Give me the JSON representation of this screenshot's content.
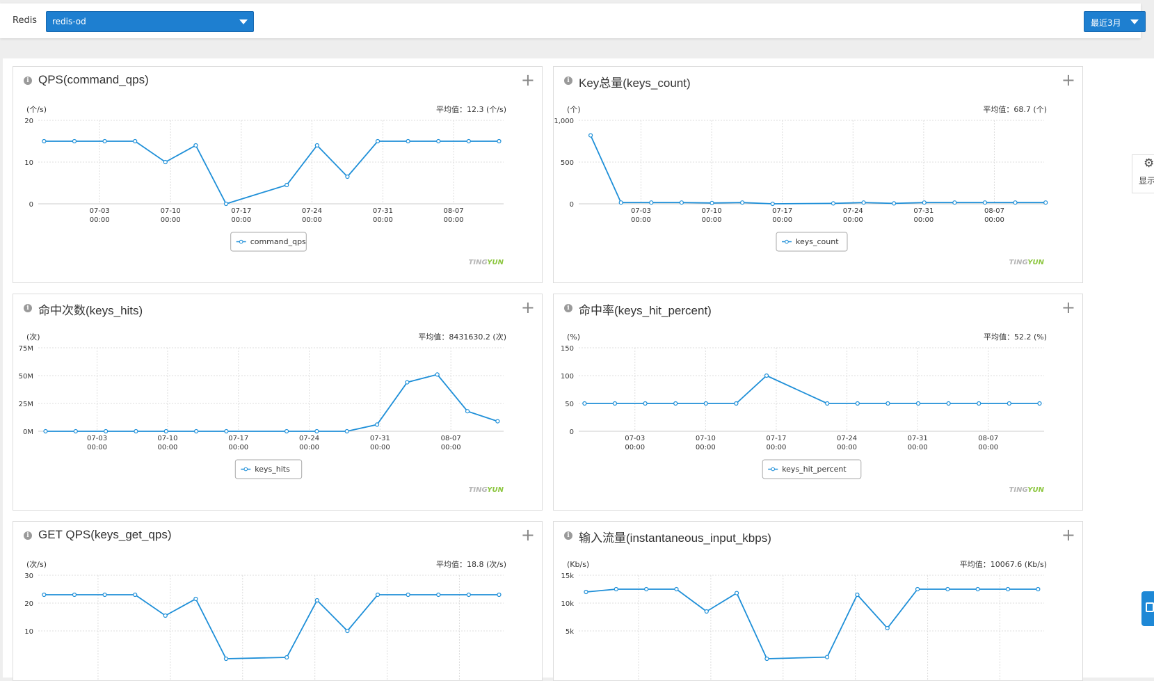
{
  "topbar": {
    "label": "Redis",
    "redis_select": "redis-od",
    "range_select": "最近3月"
  },
  "side_tools": {
    "settings_label": "显示"
  },
  "accent_color": "#1e8fd8",
  "chart_data": [
    {
      "type": "line",
      "title": "QPS(command_qps)",
      "unit_label": "(个/s)",
      "avg_label": "平均值：12.3 (个/s)",
      "yticks": [
        "0",
        "10",
        "20"
      ],
      "ylim": [
        0,
        20
      ],
      "xticks": [
        {
          "x": 1.93,
          "l1": "07-03",
          "l2": "00:00"
        },
        {
          "x": 4.27,
          "l1": "07-10",
          "l2": "00:00"
        },
        {
          "x": 6.6,
          "l1": "07-17",
          "l2": "00:00"
        },
        {
          "x": 8.93,
          "l1": "07-24",
          "l2": "00:00"
        },
        {
          "x": 11.27,
          "l1": "07-31",
          "l2": "00:00"
        },
        {
          "x": 13.6,
          "l1": "08-07",
          "l2": "00:00"
        }
      ],
      "xlim": [
        0,
        15.25
      ],
      "x": [
        0.1,
        1.1,
        2.1,
        3.1,
        4.1,
        5.1,
        6.1,
        8.1,
        9.1,
        10.1,
        11.1,
        12.1,
        13.1,
        14.1,
        15.1
      ],
      "series": [
        {
          "name": "command_qps",
          "values": [
            15,
            15,
            15,
            15,
            10,
            14,
            0,
            4.5,
            14,
            6.5,
            15,
            15,
            15,
            15,
            15
          ]
        }
      ],
      "brand": [
        "TINGYUN",
        "TING",
        "YUN"
      ]
    },
    {
      "type": "line",
      "title": "Key总量(keys_count)",
      "unit_label": "(个)",
      "avg_label": "平均值：68.7 (个)",
      "yticks": [
        "0",
        "500",
        "1,000"
      ],
      "ylim": [
        0,
        1000
      ],
      "xticks": [
        {
          "x": 1.66,
          "l1": "07-03",
          "l2": "00:00"
        },
        {
          "x": 3.99,
          "l1": "07-10",
          "l2": "00:00"
        },
        {
          "x": 6.32,
          "l1": "07-17",
          "l2": "00:00"
        },
        {
          "x": 8.65,
          "l1": "07-24",
          "l2": "00:00"
        },
        {
          "x": 10.98,
          "l1": "07-31",
          "l2": "00:00"
        },
        {
          "x": 13.31,
          "l1": "08-07",
          "l2": "00:00"
        }
      ],
      "xlim": [
        -0.3,
        14.95
      ],
      "x": [
        0,
        1,
        2,
        3,
        4,
        5,
        6,
        8,
        9,
        10,
        11,
        12,
        13,
        14,
        15
      ],
      "series": [
        {
          "name": "keys_count",
          "values": [
            820,
            15,
            15,
            15,
            10,
            15,
            0,
            5,
            15,
            5,
            15,
            15,
            15,
            15,
            15
          ]
        }
      ],
      "brand": [
        "TINGYUN",
        "TING",
        "YUN"
      ]
    },
    {
      "type": "line",
      "title": "命中次数(keys_hits)",
      "unit_label": "(次)",
      "avg_label": "平均值：8431630.2 (次)",
      "yticks": [
        "0M",
        "25M",
        "50M",
        "75M"
      ],
      "ylim": [
        0,
        75
      ],
      "xticks": [
        {
          "x": 1.71,
          "l1": "07-03",
          "l2": "00:00"
        },
        {
          "x": 4.05,
          "l1": "07-10",
          "l2": "00:00"
        },
        {
          "x": 6.4,
          "l1": "07-17",
          "l2": "00:00"
        },
        {
          "x": 8.75,
          "l1": "07-24",
          "l2": "00:00"
        },
        {
          "x": 11.1,
          "l1": "07-31",
          "l2": "00:00"
        },
        {
          "x": 13.45,
          "l1": "08-07",
          "l2": "00:00"
        }
      ],
      "xlim": [
        -0.15,
        15.2
      ],
      "x": [
        0,
        1,
        2,
        3,
        4,
        5,
        6,
        8,
        9,
        10,
        11,
        12,
        13,
        14,
        15
      ],
      "series": [
        {
          "name": "keys_hits",
          "values": [
            0,
            0,
            0,
            0,
            0,
            0,
            0,
            0,
            0,
            0,
            6,
            44,
            51,
            18,
            9
          ]
        }
      ],
      "brand": [
        "TINGYUN",
        "TING",
        "YUN"
      ]
    },
    {
      "type": "line",
      "title": "命中率(keys_hit_percent)",
      "unit_label": "(%)",
      "avg_label": "平均值：52.2 (%)",
      "yticks": [
        "0",
        "50",
        "100",
        "150"
      ],
      "ylim": [
        0,
        150
      ],
      "xticks": [
        {
          "x": 1.66,
          "l1": "07-03",
          "l2": "00:00"
        },
        {
          "x": 3.99,
          "l1": "07-10",
          "l2": "00:00"
        },
        {
          "x": 6.32,
          "l1": "07-17",
          "l2": "00:00"
        },
        {
          "x": 8.65,
          "l1": "07-24",
          "l2": "00:00"
        },
        {
          "x": 10.98,
          "l1": "07-31",
          "l2": "00:00"
        },
        {
          "x": 13.31,
          "l1": "08-07",
          "l2": "00:00"
        }
      ],
      "xlim": [
        -0.1,
        15.15
      ],
      "x": [
        0,
        1,
        2,
        3,
        4,
        5,
        6,
        8,
        9,
        10,
        11,
        12,
        13,
        14,
        15
      ],
      "series": [
        {
          "name": "keys_hit_percent",
          "values": [
            50,
            50,
            50,
            50,
            50,
            50,
            100,
            50,
            50,
            50,
            50,
            50,
            50,
            50,
            50
          ]
        }
      ],
      "brand": [
        "TINGYUN",
        "TING",
        "YUN"
      ]
    },
    {
      "type": "line",
      "title": "GET QPS(keys_get_qps)",
      "unit_label": "(次/s)",
      "avg_label": "平均值：18.8 (次/s)",
      "yticks": [
        "10",
        "20",
        "30"
      ],
      "ylim": [
        0,
        30
      ],
      "xlim": [
        0,
        15.25
      ],
      "x": [
        0.1,
        1.1,
        2.1,
        3.1,
        4.1,
        5.1,
        6.1,
        8.1,
        9.1,
        10.1,
        11.1,
        12.1,
        13.1,
        14.1,
        15.1
      ],
      "series": [
        {
          "name": "keys_get_qps",
          "values": [
            23,
            23,
            23,
            23,
            15.5,
            21.5,
            0,
            0.5,
            21,
            10,
            23,
            23,
            23,
            23,
            23
          ]
        }
      ]
    },
    {
      "type": "line",
      "title": "输入流量(instantaneous_input_kbps)",
      "unit_label": "(Kb/s)",
      "avg_label": "平均值：10067.6 (Kb/s)",
      "yticks": [
        "5k",
        "10k",
        "15k"
      ],
      "ylim": [
        0,
        15
      ],
      "xlim": [
        -0.15,
        15.2
      ],
      "x": [
        0,
        1,
        2,
        3,
        4,
        5,
        6,
        8,
        9,
        10,
        11,
        12,
        13,
        14,
        15
      ],
      "series": [
        {
          "name": "instantaneous_input_kbps",
          "values": [
            12,
            12.5,
            12.5,
            12.5,
            8.5,
            11.8,
            0,
            0.3,
            11.5,
            5.5,
            12.5,
            12.5,
            12.5,
            12.5,
            12.5
          ]
        }
      ]
    }
  ]
}
